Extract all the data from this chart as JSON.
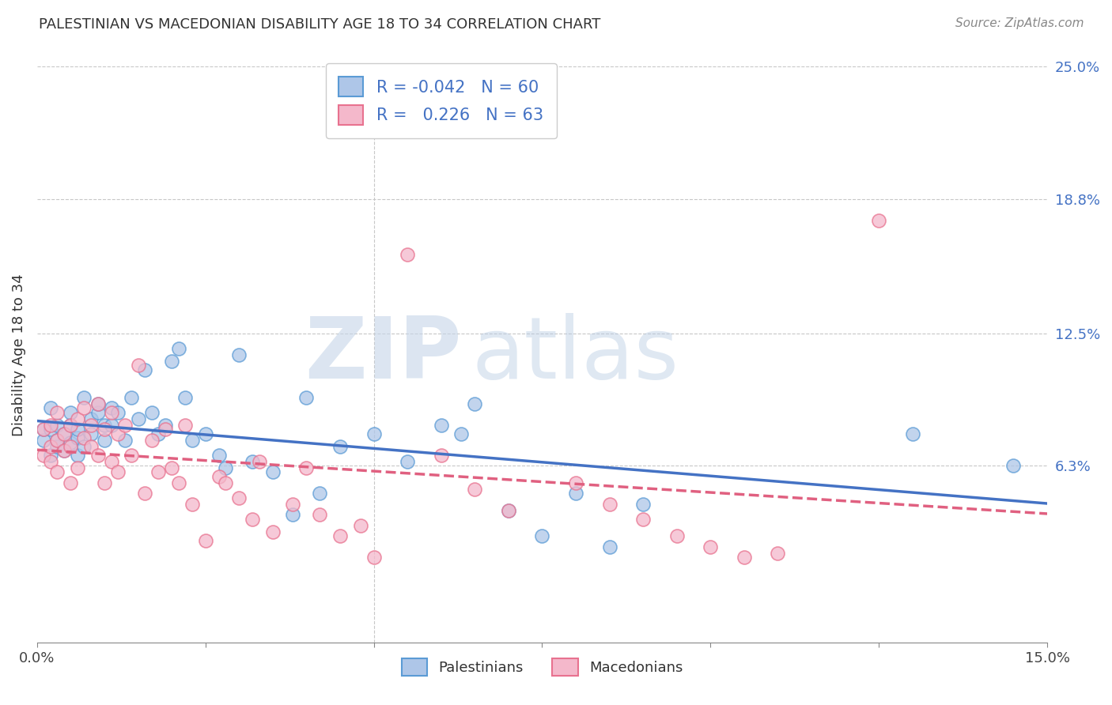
{
  "title": "PALESTINIAN VS MACEDONIAN DISABILITY AGE 18 TO 34 CORRELATION CHART",
  "source": "Source: ZipAtlas.com",
  "ylabel": "Disability Age 18 to 34",
  "xlim": [
    0.0,
    0.15
  ],
  "ylim": [
    -0.02,
    0.25
  ],
  "ytick_labels_right": [
    "6.3%",
    "12.5%",
    "18.8%",
    "25.0%"
  ],
  "ytick_values_right": [
    0.063,
    0.125,
    0.188,
    0.25
  ],
  "watermark_zip": "ZIP",
  "watermark_atlas": "atlas",
  "palestinian_color": "#aec6e8",
  "macedonian_color": "#f4b8cb",
  "palestinian_edge_color": "#5b9bd5",
  "macedonian_edge_color": "#e8728f",
  "palestinian_line_color": "#4472c4",
  "macedonian_line_color": "#e06080",
  "legend_r_palestinian": "-0.042",
  "legend_n_palestinian": "60",
  "legend_r_macedonian": "0.226",
  "legend_n_macedonian": "63",
  "legend_label_palestinian": "Palestinians",
  "legend_label_macedonian": "Macedonians",
  "palestinians_x": [
    0.001,
    0.001,
    0.002,
    0.002,
    0.002,
    0.003,
    0.003,
    0.003,
    0.004,
    0.004,
    0.005,
    0.005,
    0.005,
    0.006,
    0.006,
    0.006,
    0.007,
    0.007,
    0.008,
    0.008,
    0.009,
    0.009,
    0.01,
    0.01,
    0.011,
    0.011,
    0.012,
    0.013,
    0.014,
    0.015,
    0.016,
    0.017,
    0.018,
    0.019,
    0.02,
    0.021,
    0.022,
    0.023,
    0.025,
    0.027,
    0.028,
    0.03,
    0.032,
    0.035,
    0.038,
    0.04,
    0.042,
    0.045,
    0.05,
    0.055,
    0.06,
    0.063,
    0.065,
    0.07,
    0.075,
    0.08,
    0.085,
    0.09,
    0.13,
    0.145
  ],
  "palestinians_y": [
    0.075,
    0.08,
    0.068,
    0.08,
    0.09,
    0.072,
    0.075,
    0.082,
    0.07,
    0.078,
    0.082,
    0.074,
    0.088,
    0.076,
    0.068,
    0.08,
    0.095,
    0.072,
    0.085,
    0.078,
    0.088,
    0.092,
    0.075,
    0.082,
    0.09,
    0.082,
    0.088,
    0.075,
    0.095,
    0.085,
    0.108,
    0.088,
    0.078,
    0.082,
    0.112,
    0.118,
    0.095,
    0.075,
    0.078,
    0.068,
    0.062,
    0.115,
    0.065,
    0.06,
    0.04,
    0.095,
    0.05,
    0.072,
    0.078,
    0.065,
    0.082,
    0.078,
    0.092,
    0.042,
    0.03,
    0.05,
    0.025,
    0.045,
    0.078,
    0.063
  ],
  "macedonians_x": [
    0.001,
    0.001,
    0.002,
    0.002,
    0.002,
    0.003,
    0.003,
    0.003,
    0.004,
    0.004,
    0.005,
    0.005,
    0.005,
    0.006,
    0.006,
    0.007,
    0.007,
    0.008,
    0.008,
    0.009,
    0.009,
    0.01,
    0.01,
    0.011,
    0.011,
    0.012,
    0.012,
    0.013,
    0.014,
    0.015,
    0.016,
    0.017,
    0.018,
    0.019,
    0.02,
    0.021,
    0.022,
    0.023,
    0.025,
    0.027,
    0.028,
    0.03,
    0.032,
    0.033,
    0.035,
    0.038,
    0.04,
    0.042,
    0.045,
    0.048,
    0.05,
    0.055,
    0.06,
    0.065,
    0.07,
    0.08,
    0.085,
    0.09,
    0.095,
    0.1,
    0.105,
    0.11,
    0.125
  ],
  "macedonians_y": [
    0.068,
    0.08,
    0.072,
    0.082,
    0.065,
    0.075,
    0.088,
    0.06,
    0.078,
    0.07,
    0.082,
    0.072,
    0.055,
    0.085,
    0.062,
    0.09,
    0.076,
    0.082,
    0.072,
    0.092,
    0.068,
    0.08,
    0.055,
    0.088,
    0.065,
    0.078,
    0.06,
    0.082,
    0.068,
    0.11,
    0.05,
    0.075,
    0.06,
    0.08,
    0.062,
    0.055,
    0.082,
    0.045,
    0.028,
    0.058,
    0.055,
    0.048,
    0.038,
    0.065,
    0.032,
    0.045,
    0.062,
    0.04,
    0.03,
    0.035,
    0.02,
    0.162,
    0.068,
    0.052,
    0.042,
    0.055,
    0.045,
    0.038,
    0.03,
    0.025,
    0.02,
    0.022,
    0.178
  ]
}
